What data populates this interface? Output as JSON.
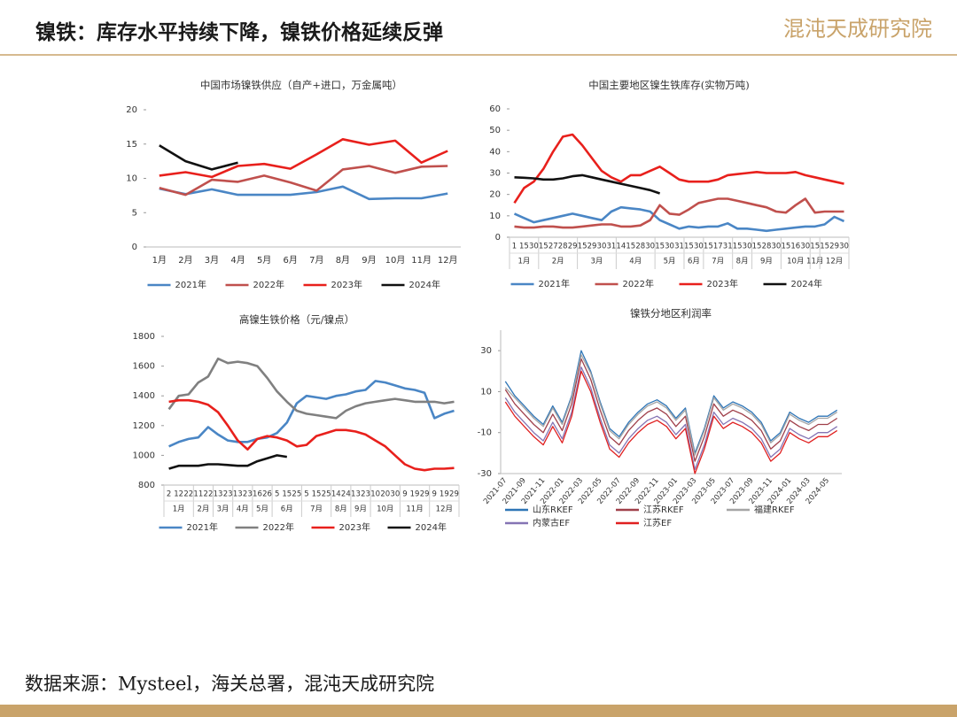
{
  "header": {
    "title": "镍铁：库存水平持续下降，镍铁价格延续反弹",
    "logo": "混沌天成研究院"
  },
  "source": "数据来源：Mysteel，海关总署，混沌天成研究院",
  "chart_data": [
    {
      "type": "line",
      "title": "中国市场镍铁供应（自产+进口，万金属吨）",
      "categories": [
        "1月",
        "2月",
        "3月",
        "4月",
        "5月",
        "6月",
        "7月",
        "8月",
        "9月",
        "10月",
        "11月",
        "12月"
      ],
      "ylim": [
        0,
        20
      ],
      "yticks": [
        0,
        5,
        10,
        15,
        20
      ],
      "legend": "bottom",
      "series": [
        {
          "name": "2021年",
          "color": "#4a86c5",
          "values": [
            8.5,
            7.7,
            8.4,
            7.6,
            7.6,
            7.6,
            8.0,
            8.8,
            7.0,
            7.1,
            7.1,
            7.8
          ]
        },
        {
          "name": "2022年",
          "color": "#c0504d",
          "values": [
            8.6,
            7.6,
            9.8,
            9.5,
            10.4,
            9.4,
            8.2,
            11.3,
            11.8,
            10.8,
            11.7,
            11.8
          ]
        },
        {
          "name": "2023年",
          "color": "#e8201c",
          "values": [
            10.4,
            10.9,
            10.2,
            11.8,
            12.1,
            11.4,
            13.5,
            15.7,
            14.9,
            15.5,
            12.3,
            14.0
          ]
        },
        {
          "name": "2024年",
          "color": "#111111",
          "values": [
            14.8,
            12.5,
            11.3,
            12.3,
            null,
            null,
            null,
            null,
            null,
            null,
            null,
            null
          ]
        }
      ]
    },
    {
      "type": "line",
      "title": "中国主要地区镍生铁库存(实物万吨)",
      "categories": [
        "1",
        "15",
        "30",
        "15",
        "27",
        "28",
        "29",
        "15",
        "29",
        "30",
        "31",
        "14",
        "15",
        "28",
        "30",
        "15",
        "30",
        "31",
        "15",
        "30",
        "15",
        "17",
        "31",
        "15",
        "30",
        "15",
        "28",
        "30",
        "15",
        "16",
        "30",
        "15",
        "15",
        "29",
        "30"
      ],
      "month_labels": [
        "1月",
        null,
        null,
        "2月",
        null,
        null,
        null,
        "3月",
        null,
        null,
        null,
        "4月",
        null,
        null,
        null,
        "5月",
        null,
        null,
        "6月",
        null,
        "7月",
        null,
        null,
        "8月",
        null,
        "9月",
        null,
        null,
        "10月",
        null,
        null,
        "11月",
        "12月",
        null,
        null
      ],
      "ylim": [
        0,
        60
      ],
      "yticks": [
        0,
        10,
        20,
        30,
        40,
        50,
        60
      ],
      "legend": "bottom",
      "series": [
        {
          "name": "2021年",
          "color": "#4a86c5",
          "values": [
            11,
            9,
            7,
            8,
            9,
            10,
            11,
            10,
            9,
            8,
            12,
            14,
            13.5,
            13,
            12,
            8,
            6,
            4,
            5,
            4.5,
            5,
            5,
            6.5,
            4,
            4,
            3.5,
            3,
            3.5,
            4,
            4.5,
            5,
            5,
            6,
            9.5,
            7.5
          ]
        },
        {
          "name": "2022年",
          "color": "#c0504d",
          "values": [
            5,
            4.5,
            4.5,
            5,
            5,
            4.5,
            4.5,
            5,
            5.5,
            6,
            6,
            5,
            5,
            5.5,
            8,
            15,
            11,
            10.5,
            13,
            16,
            17,
            18,
            18,
            17,
            16,
            15,
            14,
            12,
            11.5,
            15,
            18,
            11.5,
            12,
            12,
            12
          ]
        },
        {
          "name": "2023年",
          "color": "#e8201c",
          "values": [
            16,
            23,
            26,
            32,
            40,
            47,
            48,
            43,
            37,
            31,
            28,
            26,
            29,
            29,
            31,
            33,
            30,
            27,
            26,
            26,
            26,
            27,
            29,
            29.5,
            30,
            30.5,
            30,
            30,
            30,
            30.5,
            29,
            28,
            27,
            26,
            25
          ]
        },
        {
          "name": "2024年",
          "color": "#111111",
          "values": [
            28,
            27.8,
            27.5,
            27,
            27,
            27.5,
            28.5,
            29,
            28,
            27,
            26,
            25,
            24,
            23,
            22,
            20.5,
            null,
            null,
            null,
            null,
            null,
            null,
            null,
            null,
            null,
            null,
            null,
            null,
            null,
            null,
            null,
            null,
            null,
            null,
            null
          ]
        }
      ]
    },
    {
      "type": "line",
      "title": "高镍生铁价格（元/镍点）",
      "categories": [
        "2",
        "12",
        "22",
        "11",
        "22",
        "13",
        "23",
        "13",
        "23",
        "16",
        "26",
        "5",
        "15",
        "25",
        "5",
        "15",
        "25",
        "14",
        "24",
        "13",
        "23",
        "10",
        "20",
        "30",
        "9",
        "19",
        "29",
        "9",
        "19",
        "29"
      ],
      "month_labels": [
        "1月",
        null,
        null,
        "2月",
        null,
        "3月",
        null,
        "4月",
        null,
        "5月",
        null,
        "6月",
        null,
        null,
        "7月",
        null,
        null,
        "8月",
        null,
        "9月",
        null,
        "10月",
        null,
        null,
        "11月",
        null,
        null,
        "12月",
        null,
        null
      ],
      "ylim": [
        800,
        1800
      ],
      "yticks": [
        800,
        1000,
        1200,
        1400,
        1600,
        1800
      ],
      "legend": "bottom",
      "series": [
        {
          "name": "2021年",
          "color": "#4a86c5",
          "values": [
            1060,
            1090,
            1110,
            1120,
            1190,
            1140,
            1100,
            1090,
            1090,
            1110,
            1120,
            1150,
            1220,
            1350,
            1400,
            1390,
            1380,
            1400,
            1410,
            1430,
            1440,
            1500,
            1490,
            1470,
            1450,
            1440,
            1420,
            1250,
            1280,
            1300
          ]
        },
        {
          "name": "2022年",
          "color": "#808080",
          "values": [
            1310,
            1400,
            1410,
            1490,
            1530,
            1650,
            1620,
            1630,
            1620,
            1600,
            1520,
            1430,
            1360,
            1300,
            1280,
            1270,
            1260,
            1250,
            1300,
            1330,
            1350,
            1360,
            1370,
            1380,
            1370,
            1360,
            1360,
            1360,
            1350,
            1360
          ]
        },
        {
          "name": "2023年",
          "color": "#e8201c",
          "values": [
            1360,
            1370,
            1370,
            1360,
            1340,
            1290,
            1200,
            1100,
            1040,
            1110,
            1130,
            1120,
            1100,
            1060,
            1070,
            1130,
            1150,
            1170,
            1170,
            1160,
            1140,
            1100,
            1060,
            1000,
            940,
            910,
            900,
            910,
            910,
            915
          ]
        },
        {
          "name": "2024年",
          "color": "#111111",
          "values": [
            910,
            930,
            930,
            930,
            940,
            940,
            935,
            930,
            930,
            960,
            980,
            1000,
            990,
            null,
            null,
            null,
            null,
            null,
            null,
            null,
            null,
            null,
            null,
            null,
            null,
            null,
            null,
            null,
            null,
            null
          ]
        }
      ]
    },
    {
      "type": "line",
      "title": "镍铁分地区利润率",
      "x": [
        "2021-07",
        null,
        "2021-09",
        null,
        "2021-11",
        null,
        "2022-01",
        null,
        "2022-03",
        null,
        "2022-05",
        null,
        "2022-07",
        null,
        "2022-09",
        null,
        "2022-11",
        null,
        "2023-01",
        null,
        "2023-03",
        null,
        "2023-05",
        null,
        "2023-07",
        null,
        "2023-09",
        null,
        "2023-11",
        null,
        "2024-01",
        null,
        "2024-03",
        null,
        "2024-05",
        null
      ],
      "ylim": [
        -30,
        40
      ],
      "yticks": [
        -30,
        -10,
        10,
        30
      ],
      "legend": "bottom",
      "series": [
        {
          "name": "山东RKEF",
          "color": "#2e75b6",
          "values": [
            15,
            8,
            3,
            -2,
            -6,
            3,
            -5,
            8,
            30,
            20,
            5,
            -8,
            -12,
            -5,
            0,
            4,
            6,
            3,
            -3,
            2,
            -20,
            -8,
            8,
            2,
            5,
            3,
            0,
            -5,
            -14,
            -10,
            0,
            -3,
            -5,
            -2,
            -2,
            1
          ]
        },
        {
          "name": "江苏RKEF",
          "color": "#a0404a",
          "values": [
            11,
            4,
            -1,
            -6,
            -10,
            -1,
            -9,
            4,
            26,
            16,
            1,
            -12,
            -16,
            -9,
            -4,
            0,
            2,
            -1,
            -7,
            -2,
            -24,
            -12,
            4,
            -2,
            1,
            -1,
            -4,
            -9,
            -18,
            -14,
            -4,
            -7,
            -9,
            -6,
            -6,
            -3
          ]
        },
        {
          "name": "福建RKEF",
          "color": "#a5a5a5",
          "values": [
            12,
            7,
            2,
            -3,
            -7,
            2,
            -6,
            7,
            28,
            19,
            4,
            -9,
            -13,
            -6,
            -1,
            3,
            5,
            2,
            -4,
            1,
            -21,
            -9,
            7,
            1,
            4,
            2,
            -1,
            -6,
            -15,
            -11,
            -1,
            -4,
            -6,
            -3,
            -3,
            0
          ]
        },
        {
          "name": "内蒙古EF",
          "color": "#8474b4",
          "values": [
            7,
            0,
            -5,
            -10,
            -14,
            -5,
            -13,
            0,
            22,
            12,
            -3,
            -16,
            -20,
            -13,
            -8,
            -4,
            -2,
            -5,
            -11,
            -6,
            -28,
            -16,
            0,
            -6,
            -3,
            -5,
            -8,
            -13,
            -22,
            -18,
            -8,
            -11,
            -13,
            -10,
            -10,
            -7
          ]
        },
        {
          "name": "江苏EF",
          "color": "#e02020",
          "values": [
            5,
            -2,
            -7,
            -12,
            -16,
            -7,
            -15,
            -2,
            20,
            10,
            -5,
            -18,
            -22,
            -15,
            -10,
            -6,
            -4,
            -7,
            -13,
            -8,
            -30,
            -18,
            -2,
            -8,
            -5,
            -7,
            -10,
            -15,
            -24,
            -20,
            -10,
            -13,
            -15,
            -12,
            -12,
            -9
          ]
        }
      ]
    }
  ]
}
